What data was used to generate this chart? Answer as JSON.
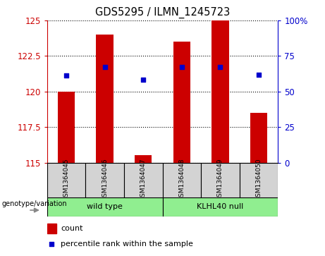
{
  "title": "GDS5295 / ILMN_1245723",
  "samples": [
    "GSM1364045",
    "GSM1364046",
    "GSM1364047",
    "GSM1364048",
    "GSM1364049",
    "GSM1364050"
  ],
  "counts": [
    120.0,
    124.0,
    115.5,
    123.5,
    125.0,
    118.5
  ],
  "percentile_values": [
    121.15,
    121.75,
    120.85,
    121.75,
    121.75,
    121.2
  ],
  "ylim_left": [
    115,
    125
  ],
  "ylim_right": [
    0,
    100
  ],
  "yticks_left": [
    115,
    117.5,
    120,
    122.5,
    125
  ],
  "yticks_right": [
    0,
    25,
    50,
    75,
    100
  ],
  "bar_color": "#cc0000",
  "dot_color": "#0000cc",
  "bar_bottom": 115,
  "group_wt_label": "wild type",
  "group_kl_label": "KLHL40 null",
  "group_color": "#90ee90",
  "group_label": "genotype/variation",
  "legend_count_label": "count",
  "legend_pct_label": "percentile rank within the sample",
  "sample_box_color": "#d3d3d3"
}
